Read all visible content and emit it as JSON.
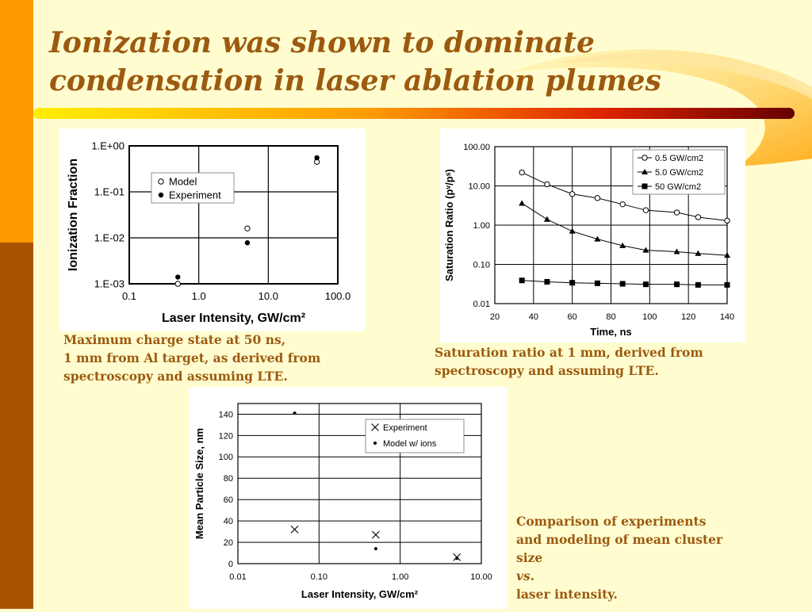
{
  "slide": {
    "title_lines": [
      "Ionization was shown to dominate",
      "condensation in laser ablation plumes"
    ],
    "colors": {
      "title": "#9c5a10",
      "background": "#fffdd0",
      "bar_top": "#ff9900",
      "bar_bottom": "#a85200"
    }
  },
  "captions": {
    "chart1": [
      "Maximum charge state at 50 ns,",
      "1 mm from Al target, as derived from",
      "spectroscopy and assuming LTE."
    ],
    "chart2": [
      "Saturation ratio at 1 mm, derived from",
      "spectroscopy and assuming LTE."
    ],
    "chart3_line1": "Comparison of experiments",
    "chart3_line2": "and modeling of mean cluster",
    "chart3_line3_pre": "size ",
    "chart3_line3_em": "vs.",
    "chart3_line3_post": " laser intensity."
  },
  "chart_data": [
    {
      "type": "scatter",
      "xlabel": "Laser Intensity, GW/cm²",
      "ylabel": "Ionization Fraction",
      "xscale": "log",
      "yscale": "log",
      "xlim": [
        0.1,
        100
      ],
      "ylim": [
        0.001,
        1
      ],
      "xticks": [
        "0.1",
        "1.0",
        "10.0",
        "100.0"
      ],
      "yticks": [
        "1.E-03",
        "1.E-02",
        "1.E-01",
        "1.E+00"
      ],
      "grid": true,
      "legend": "upper-left inside",
      "series": [
        {
          "name": "Model",
          "marker": "open-circle",
          "x": [
            0.5,
            5,
            50
          ],
          "y": [
            0.001,
            0.016,
            0.45
          ]
        },
        {
          "name": "Experiment",
          "marker": "filled-circle",
          "x": [
            0.5,
            5,
            50
          ],
          "y": [
            0.0014,
            0.0078,
            0.55
          ]
        }
      ]
    },
    {
      "type": "line",
      "xlabel": "Time, ns",
      "ylabel": "Saturation Ratio (pᵛ/pˢ)",
      "yscale": "log",
      "xlim": [
        20,
        140
      ],
      "ylim": [
        0.01,
        100
      ],
      "xticks": [
        "20",
        "40",
        "60",
        "80",
        "100",
        "120",
        "140"
      ],
      "yticks": [
        "0.01",
        "0.10",
        "1.00",
        "10.00",
        "100.00"
      ],
      "grid": true,
      "legend": "top-right",
      "x": [
        34,
        47,
        60,
        73,
        86,
        98,
        114,
        125,
        140
      ],
      "series": [
        {
          "name": "0.5 GW/cm2",
          "marker": "open-circle",
          "values": [
            22,
            11,
            6.2,
            4.9,
            3.4,
            2.4,
            2.1,
            1.6,
            1.3
          ]
        },
        {
          "name": "5.0 GW/cm2",
          "marker": "filled-triangle",
          "values": [
            3.6,
            1.4,
            0.7,
            0.44,
            0.3,
            0.23,
            0.21,
            0.19,
            0.17
          ]
        },
        {
          "name": "50 GW/cm2",
          "marker": "filled-square",
          "values": [
            0.039,
            0.036,
            0.034,
            0.033,
            0.032,
            0.031,
            0.031,
            0.03,
            0.03
          ]
        }
      ]
    },
    {
      "type": "scatter",
      "xlabel": "Laser Intensity, GW/cm²",
      "ylabel": "Mean Particle Size, nm",
      "xscale": "log",
      "xlim": [
        0.01,
        10
      ],
      "ylim": [
        0,
        150
      ],
      "xticks": [
        "0.01",
        "0.10",
        "1.00",
        "10.00"
      ],
      "yticks": [
        "0",
        "20",
        "40",
        "60",
        "80",
        "100",
        "120",
        "140"
      ],
      "grid": true,
      "legend": "top-right",
      "series": [
        {
          "name": "Experiment",
          "marker": "x",
          "x": [
            0.05,
            0.5,
            5
          ],
          "y": [
            32,
            27,
            6
          ]
        },
        {
          "name": "Model w/ ions",
          "marker": "small-dot",
          "x": [
            0.05,
            0.5,
            5
          ],
          "y": [
            141,
            14,
            5
          ]
        }
      ]
    }
  ]
}
